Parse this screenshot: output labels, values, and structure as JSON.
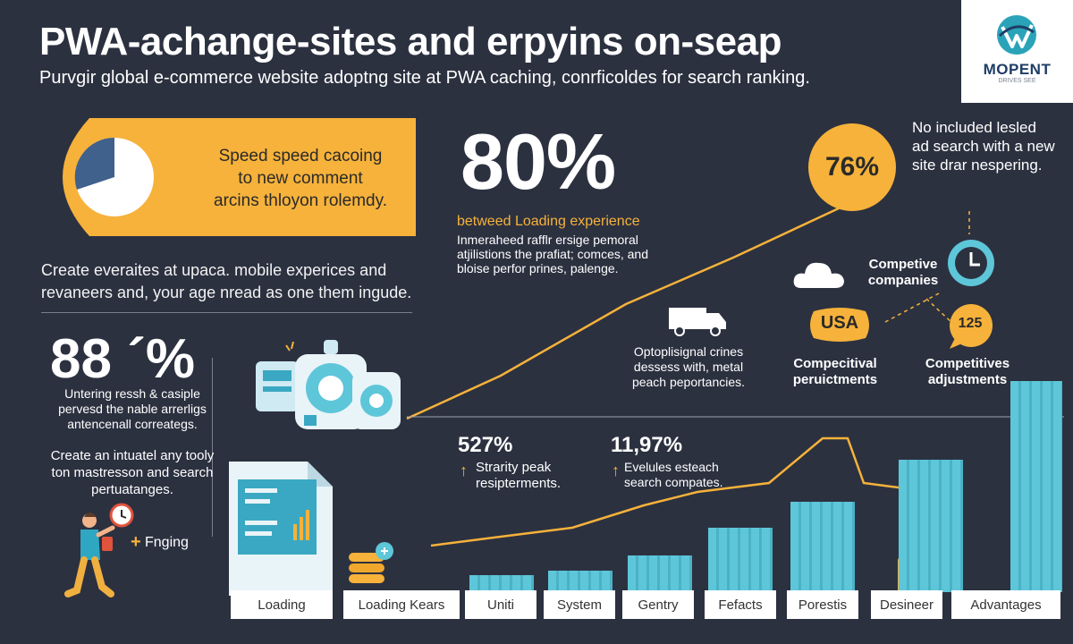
{
  "title": "PWA-achange-sites and erpyins on-seap",
  "subtitle": "Purvgir global e-commerce website adoptng site at PWA caching, conrficoldes for search ranking.",
  "logo": {
    "name": "MOPENT",
    "tagline": "DRIVES SEE",
    "icon": "brand-logo-icon"
  },
  "callout": {
    "lines": [
      "Speed speed cacoing",
      "to new comment",
      "arcins thloyon rolemdy."
    ],
    "icon": "pie-chart-icon"
  },
  "left_desc": "Create everaites at upaca. mobile experices and revaneers and, your age nread as one them ingude.",
  "stat_88": {
    "value": "88 ´%",
    "desc": "Untering ressh & casiple pervesd the nable arrerligs antencenall correategs."
  },
  "create_text": "Create an intuatel any tooly ton mastresson and search pertuatanges.",
  "fnging": "Fnging",
  "big_stat": {
    "value": "80%",
    "label": "betweed Loading experience",
    "desc": "Inmeraheed rafflr ersige pemoral atjilistions the prafiat; comces, and bloise perfor prines, palenge."
  },
  "circle_stat": {
    "value": "76%",
    "note": "No included lesled ad search with a new site drar nespering."
  },
  "competitive_companies": "Competive companies",
  "usa": "USA",
  "n125": "125",
  "comp_pert": "Compecitival peruictments",
  "comp_adj": "Competitives adjustments",
  "truck_text": "Optoplisignal crines dessess with, metal peach peportancies.",
  "stat_527": {
    "value": "527%",
    "desc": "Strarity peak resipterments."
  },
  "stat_1197": {
    "value": "11,97%",
    "desc": "Evelules esteach search compates."
  },
  "chart_data": {
    "type": "bar",
    "categories": [
      "Loading",
      "Loading Kears",
      "Uniti",
      "System",
      "Gentry",
      "Fefacts",
      "Porestis",
      "Desineer",
      "Advantages"
    ],
    "values": [
      8,
      12,
      16,
      20,
      35,
      61,
      86,
      125,
      200
    ]
  },
  "colors": {
    "background": "#2c3140",
    "accent": "#f6b23a",
    "bar": "#5ec6d9"
  }
}
